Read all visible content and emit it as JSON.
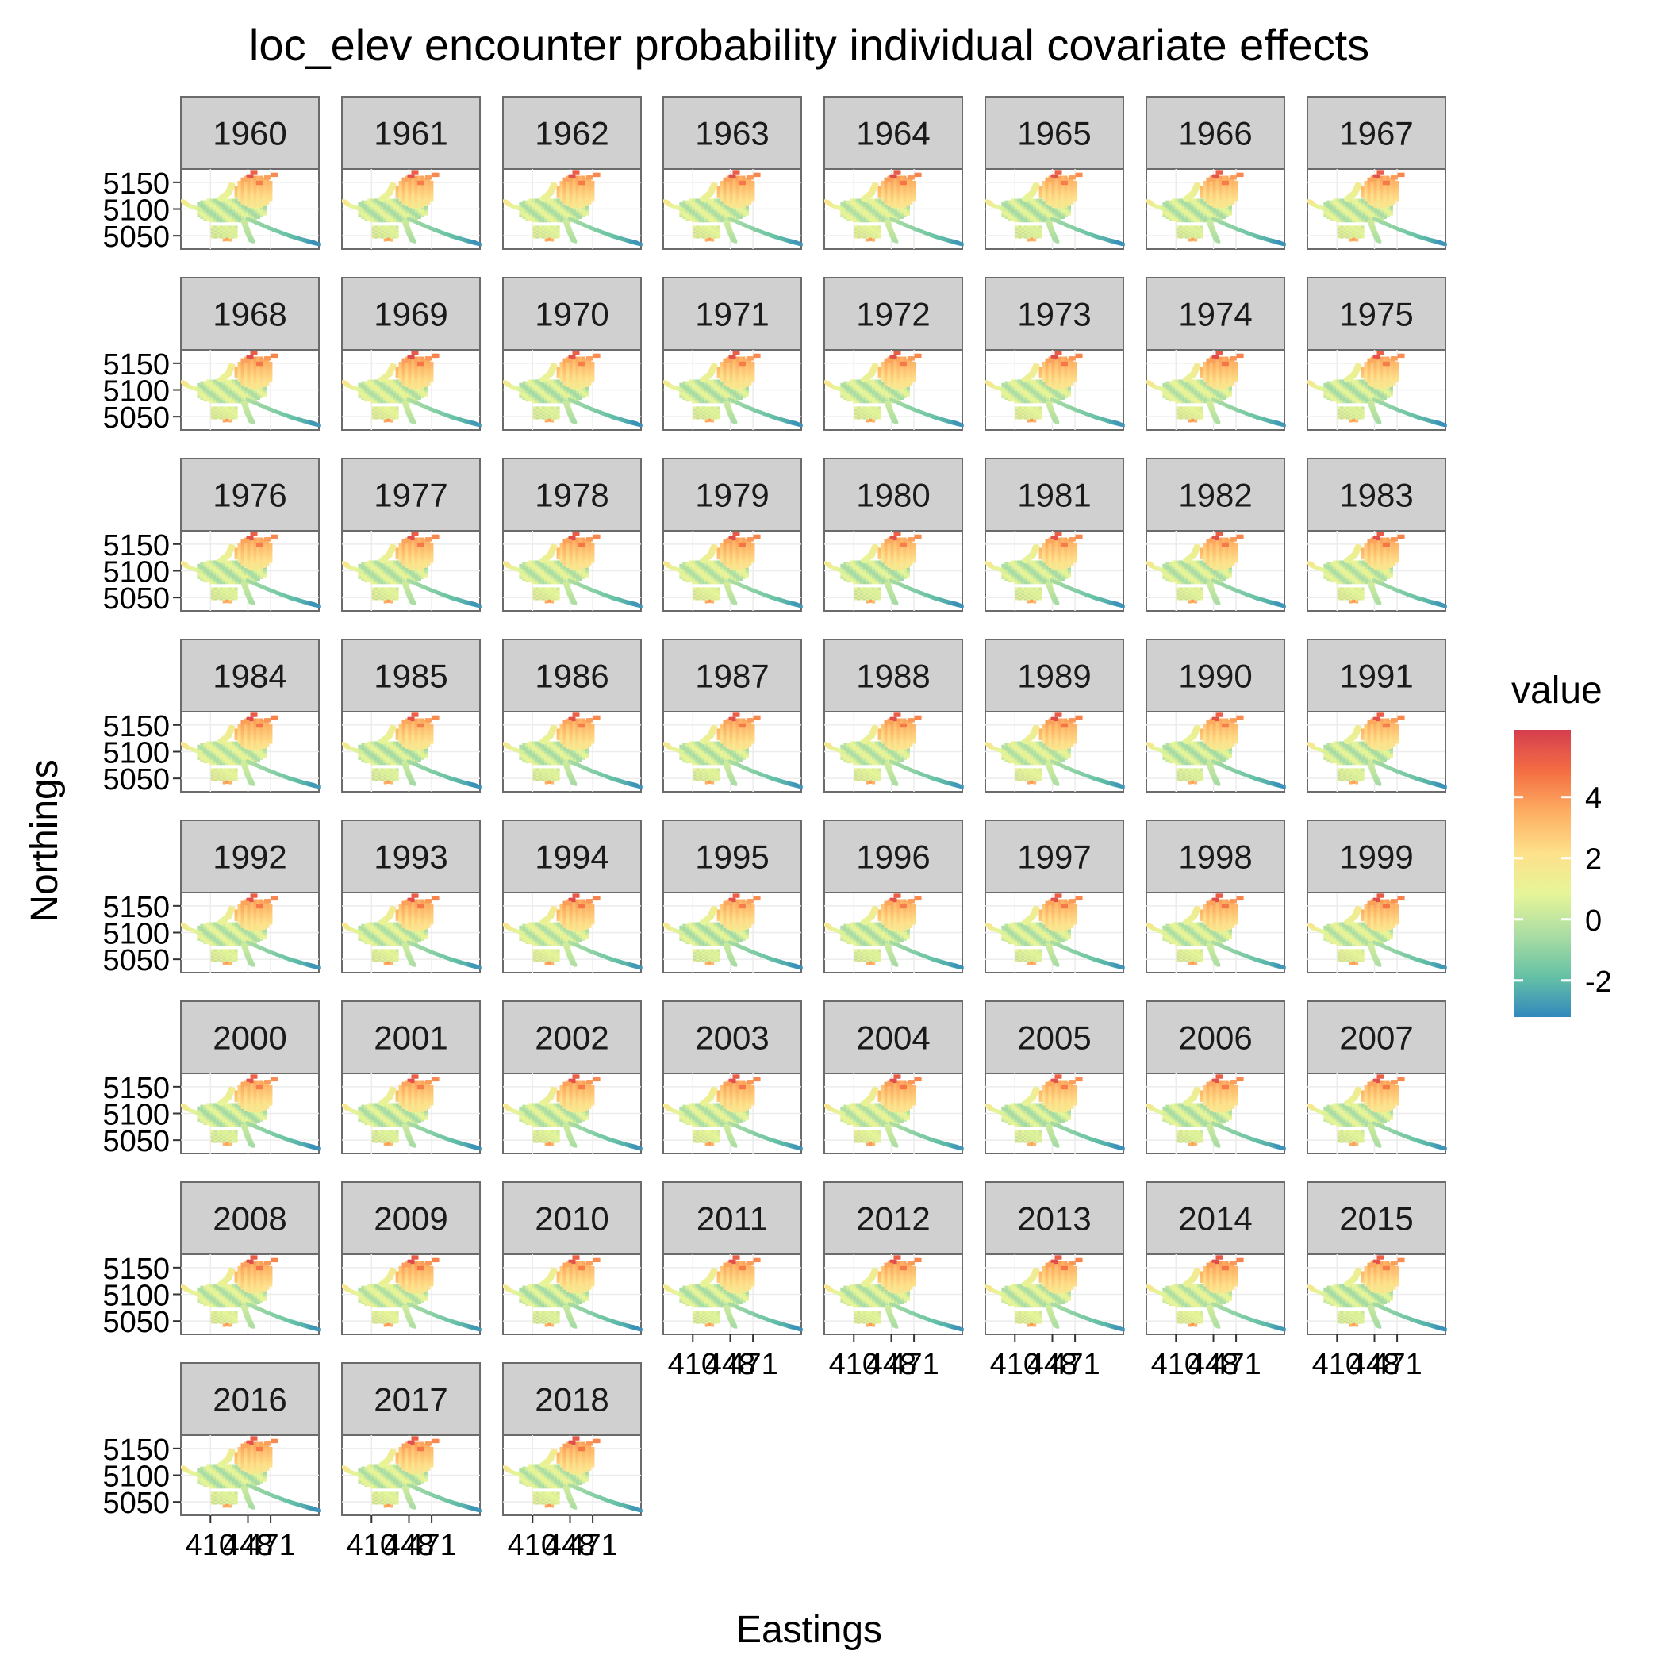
{
  "chart_data": {
    "type": "heatmap",
    "title": "loc_elev encounter probability individual covariate effects",
    "xlabel": "Eastings",
    "ylabel": "Northings",
    "facets": [
      "1960",
      "1961",
      "1962",
      "1963",
      "1964",
      "1965",
      "1966",
      "1967",
      "1968",
      "1969",
      "1970",
      "1971",
      "1972",
      "1973",
      "1974",
      "1975",
      "1976",
      "1977",
      "1978",
      "1979",
      "1980",
      "1981",
      "1982",
      "1983",
      "1984",
      "1985",
      "1986",
      "1987",
      "1988",
      "1989",
      "1990",
      "1991",
      "1992",
      "1993",
      "1994",
      "1995",
      "1996",
      "1997",
      "1998",
      "1999",
      "2000",
      "2001",
      "2002",
      "2003",
      "2004",
      "2005",
      "2006",
      "2007",
      "2008",
      "2009",
      "2010",
      "2011",
      "2012",
      "2013",
      "2014",
      "2015",
      "2016",
      "2017",
      "2018"
    ],
    "y_ticks": [
      "5150",
      "5100",
      "5050"
    ],
    "x_ticks": [
      "410",
      "448",
      "471"
    ],
    "x_tick_values": [
      410,
      448,
      471
    ],
    "y_tick_values": [
      5150,
      5100,
      5050
    ],
    "xlim": [
      380,
      520
    ],
    "ylim": [
      5025,
      5175
    ],
    "legend": {
      "title": "value",
      "position": "right",
      "ticks": [
        "4",
        "2",
        "0",
        "-2"
      ],
      "tick_values": [
        4,
        2,
        0,
        -2
      ],
      "range": [
        -3.2,
        6.2
      ],
      "colors": [
        "#3288bd",
        "#66c2a5",
        "#abdda4",
        "#e6f598",
        "#fee08b",
        "#fdae61",
        "#f46d43",
        "#d53e4f"
      ]
    },
    "grid": true
  }
}
